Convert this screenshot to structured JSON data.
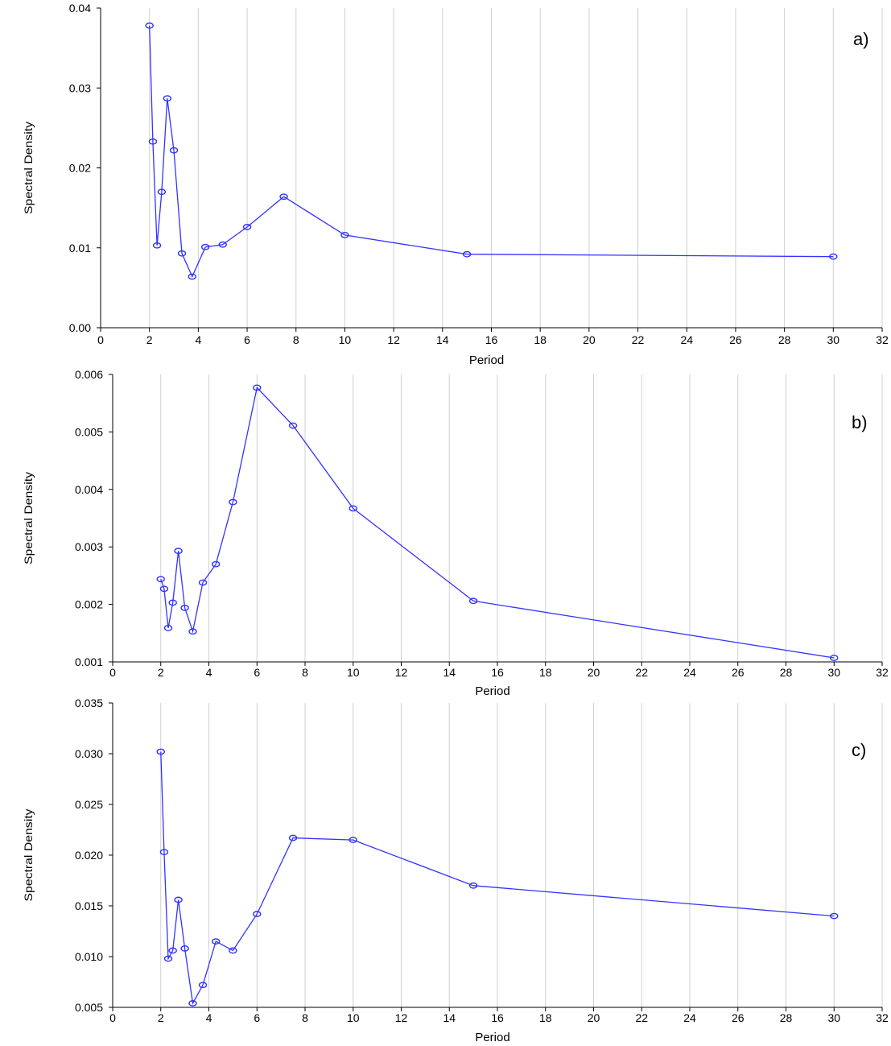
{
  "chart_data": [
    {
      "type": "line",
      "panel_label": "a)",
      "xlabel": "Period",
      "ylabel": "Spectral Density",
      "xlim": [
        0,
        32
      ],
      "ylim": [
        0,
        0.04
      ],
      "x_ticks": [
        0,
        2,
        4,
        6,
        8,
        10,
        12,
        14,
        16,
        18,
        20,
        22,
        24,
        26,
        28,
        30,
        32
      ],
      "x_tick_labels": [
        "0",
        "2",
        "4",
        "6",
        "8",
        "10",
        "12",
        "14",
        "16",
        "18",
        "20",
        "22",
        "24",
        "26",
        "28",
        "30",
        "32"
      ],
      "y_ticks": [
        0,
        0.01,
        0.02,
        0.03,
        0.04
      ],
      "y_tick_labels": [
        "0.00",
        "0.01",
        "0.02",
        "0.03",
        "0.04"
      ],
      "grid": "vertical",
      "series": [
        {
          "color": "#3333ff",
          "x": [
            2.0,
            2.14,
            2.31,
            2.5,
            2.73,
            3.0,
            3.33,
            3.75,
            4.29,
            5.0,
            6.0,
            7.5,
            10.0,
            15.0,
            30.0
          ],
          "y": [
            0.0378,
            0.0233,
            0.0103,
            0.017,
            0.0287,
            0.0222,
            0.0093,
            0.0064,
            0.0101,
            0.0104,
            0.0126,
            0.0164,
            0.0116,
            0.0092,
            0.0089
          ]
        }
      ]
    },
    {
      "type": "line",
      "panel_label": "b)",
      "xlabel": "Period",
      "ylabel": "Spectral Density",
      "xlim": [
        0,
        32
      ],
      "ylim": [
        0.001,
        0.006
      ],
      "x_ticks": [
        0,
        2,
        4,
        6,
        8,
        10,
        12,
        14,
        16,
        18,
        20,
        22,
        24,
        26,
        28,
        30,
        32
      ],
      "x_tick_labels": [
        "0",
        "2",
        "4",
        "6",
        "8",
        "10",
        "12",
        "14",
        "16",
        "18",
        "20",
        "22",
        "24",
        "26",
        "28",
        "30",
        "32"
      ],
      "y_ticks": [
        0.001,
        0.002,
        0.003,
        0.004,
        0.005,
        0.006
      ],
      "y_tick_labels": [
        "0.001",
        "0.002",
        "0.003",
        "0.004",
        "0.005",
        "0.006"
      ],
      "grid": "vertical",
      "series": [
        {
          "color": "#3333ff",
          "x": [
            2.0,
            2.14,
            2.31,
            2.5,
            2.73,
            3.0,
            3.33,
            3.75,
            4.29,
            5.0,
            6.0,
            7.5,
            10.0,
            15.0,
            30.0
          ],
          "y": [
            0.00244,
            0.00227,
            0.00159,
            0.00203,
            0.00293,
            0.00194,
            0.00153,
            0.00238,
            0.0027,
            0.00378,
            0.00577,
            0.00511,
            0.00367,
            0.00206,
            0.00107
          ]
        }
      ]
    },
    {
      "type": "line",
      "panel_label": "c)",
      "xlabel": "Period",
      "ylabel": "Spectral Density",
      "xlim": [
        0,
        32
      ],
      "ylim": [
        0.005,
        0.035
      ],
      "x_ticks": [
        0,
        2,
        4,
        6,
        8,
        10,
        12,
        14,
        16,
        18,
        20,
        22,
        24,
        26,
        28,
        30,
        32
      ],
      "x_tick_labels": [
        "0",
        "2",
        "4",
        "6",
        "8",
        "10",
        "12",
        "14",
        "16",
        "18",
        "20",
        "22",
        "24",
        "26",
        "28",
        "30",
        "32"
      ],
      "y_ticks": [
        0.005,
        0.01,
        0.015,
        0.02,
        0.025,
        0.03,
        0.035
      ],
      "y_tick_labels": [
        "0.005",
        "0.010",
        "0.015",
        "0.020",
        "0.025",
        "0.030",
        "0.035"
      ],
      "grid": "vertical",
      "series": [
        {
          "color": "#3333ff",
          "x": [
            2.0,
            2.14,
            2.31,
            2.5,
            2.73,
            3.0,
            3.33,
            3.75,
            4.29,
            5.0,
            6.0,
            7.5,
            10.0,
            15.0,
            30.0
          ],
          "y": [
            0.0302,
            0.0203,
            0.0098,
            0.0106,
            0.0156,
            0.0108,
            0.0054,
            0.0072,
            0.0115,
            0.0106,
            0.0142,
            0.0217,
            0.0215,
            0.017,
            0.014
          ]
        }
      ]
    }
  ]
}
